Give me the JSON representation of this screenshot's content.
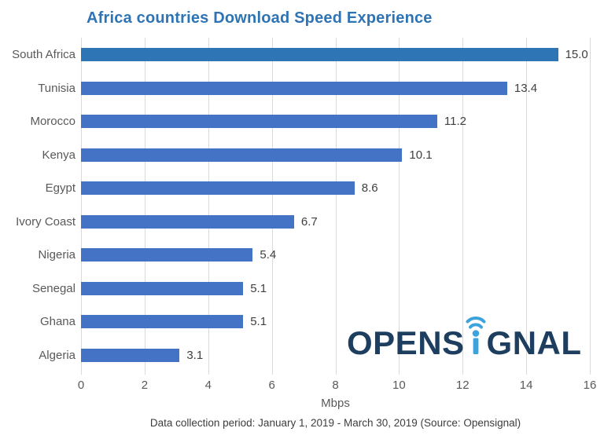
{
  "title": "Africa countries Download Speed Experience",
  "footer": "Data collection period: January 1, 2019 - March 30, 2019 (Source: Opensignal)",
  "logo": {
    "part1": "OPENS",
    "part2": "GNAL",
    "icon": "wifi-signal-i-icon"
  },
  "colors": {
    "title_color": "#2e74b5",
    "bar_default": "#4472c4",
    "bar_highlight": "#2e75b6",
    "gridline": "#d9d9d9",
    "category_label": "#595959",
    "value_label": "#404040",
    "axis_label": "#595959",
    "footer_text": "#3d3d3d",
    "logo_navy": "#1d3e5f",
    "logo_blue": "#3ea3dc"
  },
  "chart_data": {
    "type": "bar",
    "orientation": "horizontal",
    "title": "Africa countries Download Speed Experience",
    "categories": [
      "South Africa",
      "Tunisia",
      "Morocco",
      "Kenya",
      "Egypt",
      "Ivory Coast",
      "Nigeria",
      "Senegal",
      "Ghana",
      "Algeria"
    ],
    "values": [
      15.0,
      13.4,
      11.2,
      10.1,
      8.6,
      6.7,
      5.4,
      5.1,
      5.1,
      3.1
    ],
    "value_labels": [
      "15.0",
      "13.4",
      "11.2",
      "10.1",
      "8.6",
      "6.7",
      "5.4",
      "5.1",
      "5.1",
      "3.1"
    ],
    "xlabel": "Mbps",
    "ylabel": "",
    "xlim": [
      0,
      16
    ],
    "xticks": [
      0,
      2,
      4,
      6,
      8,
      10,
      12,
      14,
      16
    ],
    "grid": "vertical",
    "legend": "none",
    "highlight_index": 0
  }
}
